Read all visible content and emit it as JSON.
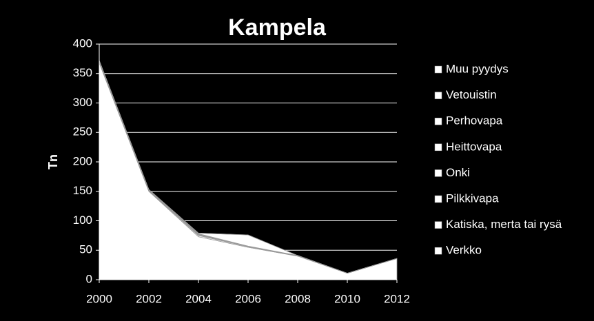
{
  "chart_data": {
    "type": "stacked-area",
    "title": "Kampela",
    "y_label": "Tn",
    "x": [
      2000,
      2002,
      2004,
      2006,
      2008,
      2010,
      2012
    ],
    "xlim": [
      2000,
      2012
    ],
    "xticks": [
      2000,
      2002,
      2004,
      2006,
      2008,
      2010,
      2012
    ],
    "ylim": [
      0,
      400
    ],
    "yticks": [
      0,
      50,
      100,
      150,
      200,
      250,
      300,
      350,
      400
    ],
    "grid": true,
    "legend": "right",
    "series": [
      {
        "name": "Verkko",
        "color": "#ffffff",
        "values": [
          368,
          150,
          73,
          55,
          40,
          11,
          36
        ]
      },
      {
        "name": "Katiska, merta tai rysä",
        "color": "#ffffff",
        "values": [
          2,
          1,
          2,
          1,
          1,
          0,
          0
        ]
      },
      {
        "name": "Pilkkivapa",
        "color": "#ffffff",
        "values": [
          0,
          0,
          1,
          0,
          0,
          0,
          0
        ]
      },
      {
        "name": "Onki",
        "color": "#ffffff",
        "values": [
          1,
          1,
          1,
          0,
          0,
          0,
          0
        ]
      },
      {
        "name": "Heittovapa",
        "color": "#ffffff",
        "values": [
          1,
          1,
          1,
          1,
          0,
          0,
          0
        ]
      },
      {
        "name": "Perhovapa",
        "color": "#ffffff",
        "values": [
          0,
          0,
          0,
          0,
          0,
          0,
          0
        ]
      },
      {
        "name": "Vetouistin",
        "color": "#ffffff",
        "values": [
          0,
          0,
          1,
          19,
          0,
          0,
          0
        ]
      },
      {
        "name": "Muu pyydys",
        "color": "#ffffff",
        "values": [
          0,
          0,
          0,
          0,
          0,
          0,
          0
        ]
      }
    ]
  }
}
